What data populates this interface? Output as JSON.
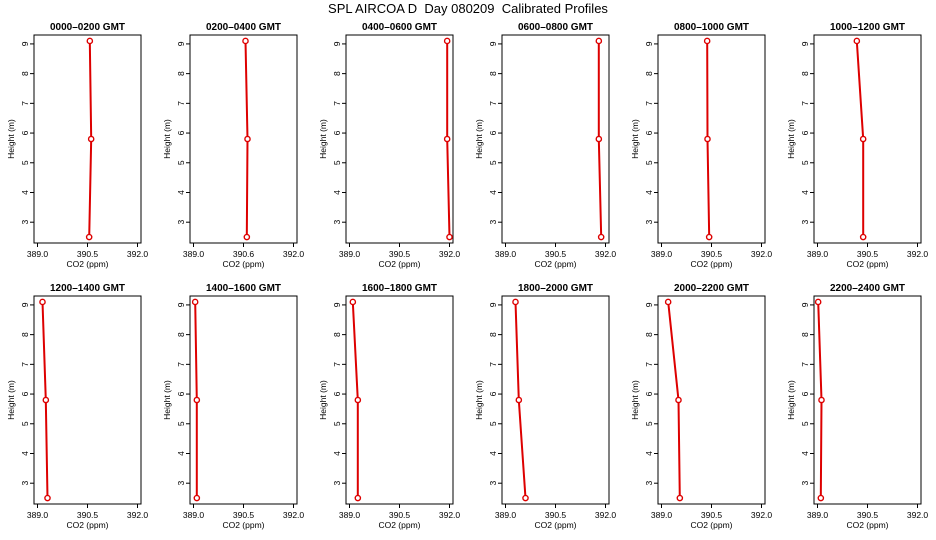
{
  "page": {
    "title": "SPL AIRCOA D  Day 080209  Calibrated Profiles"
  },
  "chart_data": [
    {
      "type": "line",
      "title": "0000–0200 GMT",
      "xlabel": "CO2 (ppm)",
      "ylabel": "Height (m)",
      "x": [
        390.55,
        390.61,
        390.57
      ],
      "y": [
        2.5,
        5.8,
        9.1
      ],
      "xlim": [
        389.0,
        392.0
      ],
      "xticks": [
        "389.0",
        "390.5",
        "392.0"
      ],
      "yticks": [
        "3",
        "4",
        "5",
        "6",
        "7",
        "8",
        "9"
      ],
      "ylim": [
        2.3,
        9.3
      ],
      "series_color": "#dd0000"
    },
    {
      "type": "line",
      "title": "0200–0400 GMT",
      "xlabel": "CO2 (ppm)",
      "ylabel": "Height (m)",
      "x": [
        390.6,
        390.62,
        390.56
      ],
      "y": [
        2.5,
        5.8,
        9.1
      ],
      "xlim": [
        389.0,
        392.0
      ],
      "xticks": [
        "389.0",
        "390.6",
        "392.0"
      ],
      "yticks": [
        "3",
        "4",
        "5",
        "6",
        "7",
        "8",
        "9"
      ],
      "ylim": [
        2.3,
        9.3
      ],
      "series_color": "#dd0000"
    },
    {
      "type": "line",
      "title": "0400–0600 GMT",
      "xlabel": "CO2 (ppm)",
      "ylabel": "Height (m)",
      "x": [
        392.0,
        391.93,
        391.93
      ],
      "y": [
        2.5,
        5.8,
        9.1
      ],
      "xlim": [
        389.0,
        392.0
      ],
      "xticks": [
        "389.0",
        "390.5",
        "392.0"
      ],
      "yticks": [
        "3",
        "4",
        "5",
        "6",
        "7",
        "8",
        "9"
      ],
      "ylim": [
        2.3,
        9.3
      ],
      "series_color": "#dd0000"
    },
    {
      "type": "line",
      "title": "0600–0800 GMT",
      "xlabel": "CO2 (ppm)",
      "ylabel": "Height (m)",
      "x": [
        391.87,
        391.8,
        391.8
      ],
      "y": [
        2.5,
        5.8,
        9.1
      ],
      "xlim": [
        389.0,
        392.0
      ],
      "xticks": [
        "389.0",
        "390.5",
        "392.0"
      ],
      "yticks": [
        "3",
        "4",
        "5",
        "6",
        "7",
        "8",
        "9"
      ],
      "ylim": [
        2.3,
        9.3
      ],
      "series_color": "#dd0000"
    },
    {
      "type": "line",
      "title": "0800–1000 GMT",
      "xlabel": "CO2 (ppm)",
      "ylabel": "Height (m)",
      "x": [
        390.43,
        390.38,
        390.37
      ],
      "y": [
        2.5,
        5.8,
        9.1
      ],
      "xlim": [
        389.0,
        392.0
      ],
      "xticks": [
        "389.0",
        "390.5",
        "392.0"
      ],
      "yticks": [
        "3",
        "4",
        "5",
        "6",
        "7",
        "8",
        "9"
      ],
      "ylim": [
        2.3,
        9.3
      ],
      "series_color": "#dd0000"
    },
    {
      "type": "line",
      "title": "1000–1200 GMT",
      "xlabel": "CO2 (ppm)",
      "ylabel": "Height (m)",
      "x": [
        390.37,
        390.37,
        390.18
      ],
      "y": [
        2.5,
        5.8,
        9.1
      ],
      "xlim": [
        389.0,
        392.0
      ],
      "xticks": [
        "389.0",
        "390.5",
        "392.0"
      ],
      "yticks": [
        "3",
        "4",
        "5",
        "6",
        "7",
        "8",
        "9"
      ],
      "ylim": [
        2.3,
        9.3
      ],
      "series_color": "#dd0000"
    },
    {
      "type": "line",
      "title": "1200–1400 GMT",
      "xlabel": "CO2 (ppm)",
      "ylabel": "Height (m)",
      "x": [
        389.3,
        389.25,
        389.15
      ],
      "y": [
        2.5,
        5.8,
        9.1
      ],
      "xlim": [
        389.0,
        392.0
      ],
      "xticks": [
        "389.0",
        "390.5",
        "392.0"
      ],
      "yticks": [
        "3",
        "4",
        "5",
        "6",
        "7",
        "8",
        "9"
      ],
      "ylim": [
        2.3,
        9.3
      ],
      "series_color": "#dd0000"
    },
    {
      "type": "line",
      "title": "1400–1600 GMT",
      "xlabel": "CO2 (ppm)",
      "ylabel": "Height (m)",
      "x": [
        389.1,
        389.1,
        389.05
      ],
      "y": [
        2.5,
        5.8,
        9.1
      ],
      "xlim": [
        389.0,
        392.0
      ],
      "xticks": [
        "389.0",
        "390.5",
        "392.0"
      ],
      "yticks": [
        "3",
        "4",
        "5",
        "6",
        "7",
        "8",
        "9"
      ],
      "ylim": [
        2.3,
        9.3
      ],
      "series_color": "#dd0000"
    },
    {
      "type": "line",
      "title": "1600–1800 GMT",
      "xlabel": "CO2 (ppm)",
      "ylabel": "Height (m)",
      "x": [
        389.25,
        389.25,
        389.1
      ],
      "y": [
        2.5,
        5.8,
        9.1
      ],
      "xlim": [
        389.0,
        392.0
      ],
      "xticks": [
        "389.0",
        "390.5",
        "392.0"
      ],
      "yticks": [
        "3",
        "4",
        "5",
        "6",
        "7",
        "8",
        "9"
      ],
      "ylim": [
        2.3,
        9.3
      ],
      "series_color": "#dd0000"
    },
    {
      "type": "line",
      "title": "1800–2000 GMT",
      "xlabel": "CO2 (ppm)",
      "ylabel": "Height (m)",
      "x": [
        389.6,
        389.4,
        389.3
      ],
      "y": [
        2.5,
        5.8,
        9.1
      ],
      "xlim": [
        389.0,
        392.0
      ],
      "xticks": [
        "389.0",
        "390.5",
        "392.0"
      ],
      "yticks": [
        "3",
        "4",
        "5",
        "6",
        "7",
        "8",
        "9"
      ],
      "ylim": [
        2.3,
        9.3
      ],
      "series_color": "#dd0000"
    },
    {
      "type": "line",
      "title": "2000–2200 GMT",
      "xlabel": "CO2 (ppm)",
      "ylabel": "Height (m)",
      "x": [
        389.55,
        389.51,
        389.2
      ],
      "y": [
        2.5,
        5.8,
        9.1
      ],
      "xlim": [
        389.0,
        392.0
      ],
      "xticks": [
        "389.0",
        "390.5",
        "392.0"
      ],
      "yticks": [
        "3",
        "4",
        "5",
        "6",
        "7",
        "8",
        "9"
      ],
      "ylim": [
        2.3,
        9.3
      ],
      "series_color": "#dd0000"
    },
    {
      "type": "line",
      "title": "2200–2400 GMT",
      "xlabel": "CO2 (ppm)",
      "ylabel": "Height (m)",
      "x": [
        389.1,
        389.12,
        389.02
      ],
      "y": [
        2.5,
        5.8,
        9.1
      ],
      "xlim": [
        389.0,
        392.0
      ],
      "xticks": [
        "389.0",
        "390.5",
        "392.0"
      ],
      "yticks": [
        "3",
        "4",
        "5",
        "6",
        "7",
        "8",
        "9"
      ],
      "ylim": [
        2.3,
        9.3
      ],
      "series_color": "#dd0000"
    }
  ]
}
